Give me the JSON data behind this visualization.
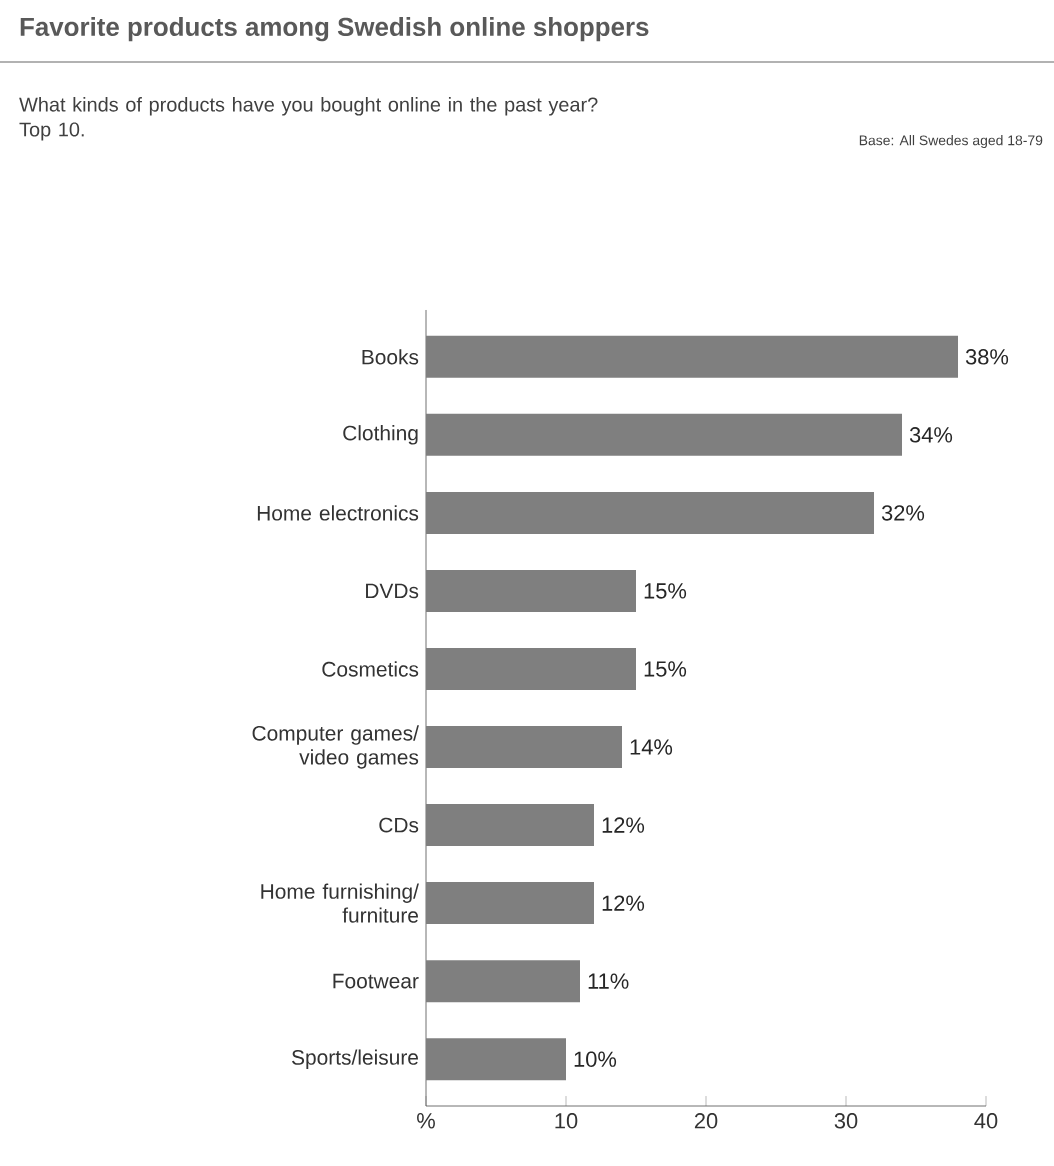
{
  "chart_data": {
    "type": "bar",
    "orientation": "horizontal",
    "title": "Favorite products among Swedish online shoppers",
    "subtitle": "What kinds of products have you bought online in the past year? Top 10.",
    "annotations": [
      "Base: All Swedes aged 18-79"
    ],
    "categories": [
      "Books",
      "Clothing",
      "Home electronics",
      "DVDs",
      "Cosmetics",
      "Computer games/ video games",
      "CDs",
      "Home furnishing/ furniture",
      "Footwear",
      "Sports/leisure"
    ],
    "values": [
      38,
      34,
      32,
      15,
      15,
      14,
      12,
      12,
      11,
      10
    ],
    "value_labels": [
      "38%",
      "34%",
      "32%",
      "15%",
      "15%",
      "14%",
      "12%",
      "12%",
      "11%",
      "10%"
    ],
    "color": "#7f7f7f",
    "xlim": [
      0,
      40
    ],
    "xticks": [
      {
        "value": 0,
        "label": "%"
      },
      10,
      20,
      30,
      40
    ]
  }
}
